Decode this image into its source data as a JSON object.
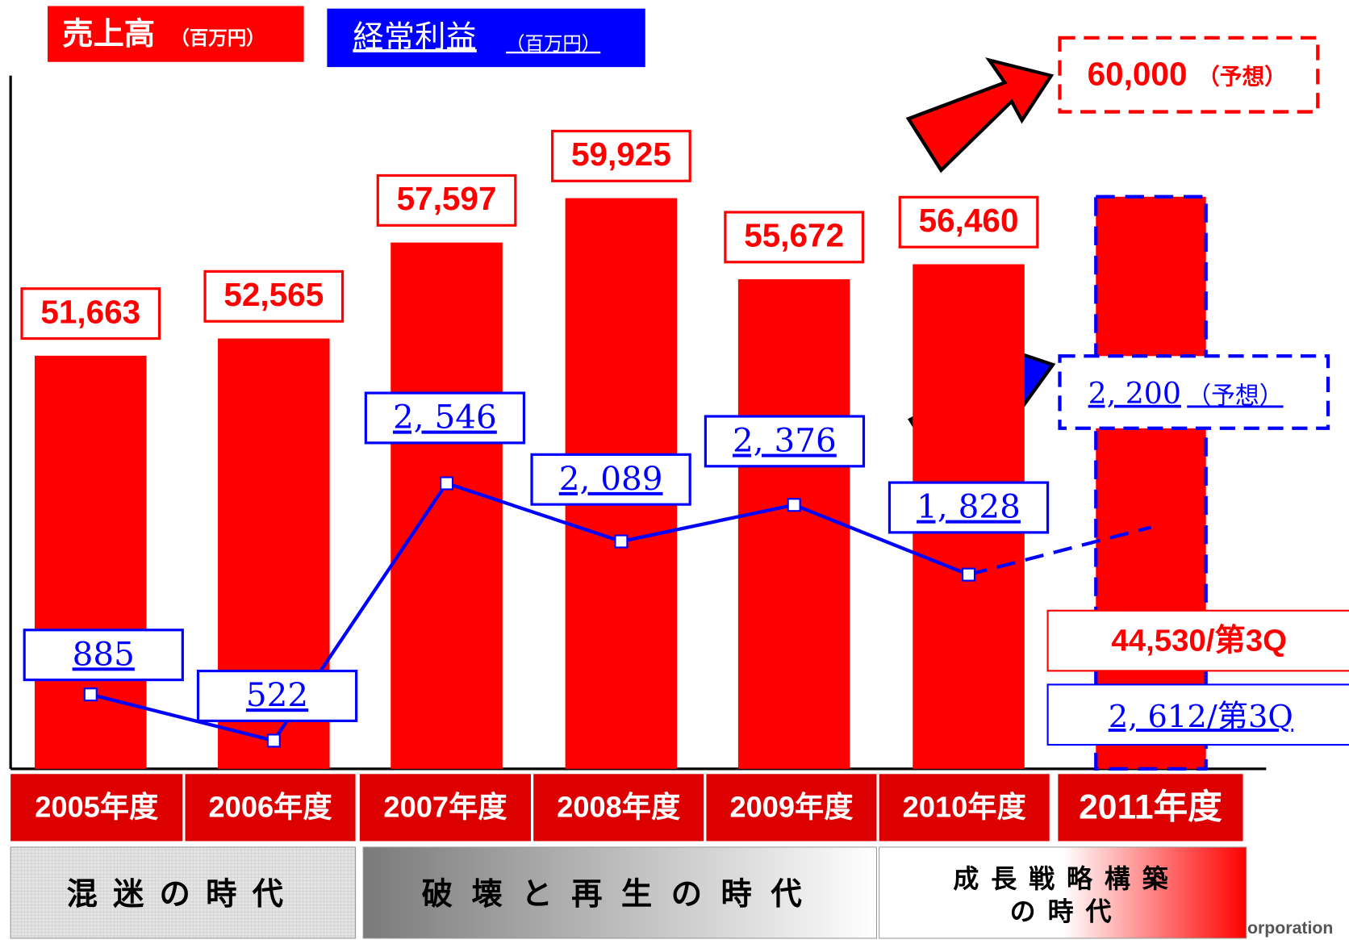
{
  "chart_data": {
    "type": "bar",
    "categories": [
      "2005年度",
      "2006年度",
      "2007年度",
      "2008年度",
      "2009年度",
      "2010年度",
      "2011年度"
    ],
    "series": [
      {
        "name": "売上高",
        "type": "bar",
        "color": "#ff0000",
        "values": [
          51663,
          52565,
          57597,
          59925,
          55672,
          56460,
          60000
        ],
        "value_labels": [
          "51,663",
          "52,565",
          "57,597",
          "59,925",
          "55,672",
          "56,460",
          "60,000"
        ]
      },
      {
        "name": "経常利益",
        "type": "line",
        "axis": "y2",
        "color": "#0000ff",
        "values": [
          885,
          522,
          2546,
          2089,
          2376,
          1828,
          2200
        ],
        "value_labels": [
          "885",
          "522",
          "2, 546",
          "2, 089",
          "2, 376",
          "1, 828",
          "2, 200"
        ]
      }
    ],
    "legend_unit": "（百万円）",
    "forecast_note": "（予想）",
    "q3_labels": [
      "44,530/第3Q",
      "2, 612/第3Q"
    ],
    "eras": [
      [
        "混迷の時代"
      ],
      [
        "破壊と再生の時代"
      ],
      [
        "成長戦略構築",
        "の時代"
      ]
    ],
    "footer": "orporation",
    "ylim": [
      30000,
      70000
    ],
    "y2lim": [
      300,
      6300
    ]
  }
}
